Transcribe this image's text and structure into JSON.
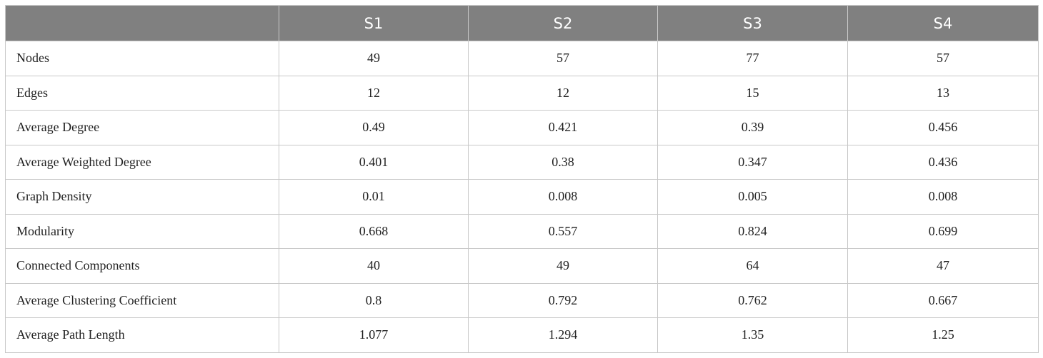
{
  "table": {
    "columns": [
      "S1",
      "S2",
      "S3",
      "S4"
    ],
    "rows": [
      {
        "label": "Nodes",
        "values": [
          "49",
          "57",
          "77",
          "57"
        ]
      },
      {
        "label": "Edges",
        "values": [
          "12",
          "12",
          "15",
          "13"
        ]
      },
      {
        "label": "Average Degree",
        "values": [
          "0.49",
          "0.421",
          "0.39",
          "0.456"
        ]
      },
      {
        "label": "Average Weighted Degree",
        "values": [
          "0.401",
          "0.38",
          "0.347",
          "0.436"
        ]
      },
      {
        "label": "Graph Density",
        "values": [
          "0.01",
          "0.008",
          "0.005",
          "0.008"
        ]
      },
      {
        "label": "Modularity",
        "values": [
          "0.668",
          "0.557",
          "0.824",
          "0.699"
        ]
      },
      {
        "label": "Connected Components",
        "values": [
          "40",
          "49",
          "64",
          "47"
        ]
      },
      {
        "label": "Average Clustering Coefficient",
        "values": [
          "0.8",
          "0.792",
          "0.762",
          "0.667"
        ]
      },
      {
        "label": "Average Path Length",
        "values": [
          "1.077",
          "1.294",
          "1.35",
          "1.25"
        ]
      }
    ]
  }
}
